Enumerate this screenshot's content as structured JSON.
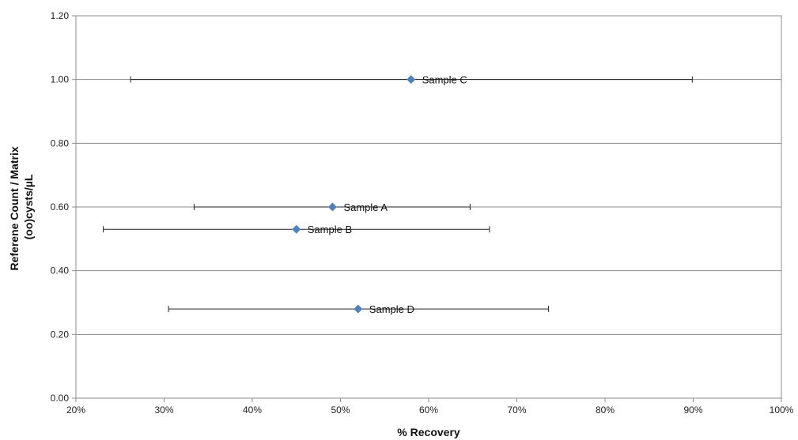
{
  "chart_data": {
    "type": "scatter",
    "title": "",
    "xlabel": "% Recovery",
    "ylabel_lines": [
      "Referene Count / Matrix",
      "(oo)cysts/µL"
    ],
    "xlim": [
      0.2,
      1.0
    ],
    "ylim": [
      0.0,
      1.2
    ],
    "x_ticks": [
      "20%",
      "30%",
      "40%",
      "50%",
      "60%",
      "70%",
      "80%",
      "90%",
      "100%"
    ],
    "y_ticks": [
      "0.00",
      "0.20",
      "0.40",
      "0.60",
      "0.80",
      "1.00",
      "1.20"
    ],
    "grid": "horizontal",
    "legend": "none",
    "marker_color": "#4F81BD",
    "points": [
      {
        "label": "Sample C",
        "x": 0.58,
        "y": 1.0,
        "x_err_low": 0.262,
        "x_err_high": 0.899
      },
      {
        "label": "Sample A",
        "x": 0.491,
        "y": 0.6,
        "x_err_low": 0.334,
        "x_err_high": 0.647
      },
      {
        "label": "Sample B",
        "x": 0.45,
        "y": 0.53,
        "x_err_low": 0.231,
        "x_err_high": 0.669
      },
      {
        "label": "Sample D",
        "x": 0.52,
        "y": 0.28,
        "x_err_low": 0.305,
        "x_err_high": 0.736
      }
    ]
  }
}
